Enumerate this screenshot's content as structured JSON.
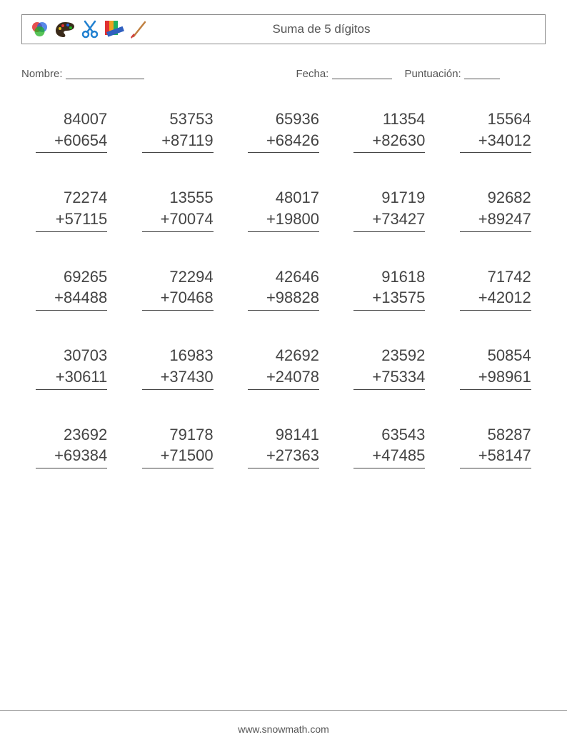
{
  "header": {
    "title": "Suma de 5 dígitos",
    "icons": [
      "venn-icon",
      "palette-icon",
      "scissors-icon",
      "swatch-ruler-icon",
      "brush-icon"
    ]
  },
  "labels": {
    "name": "Nombre:",
    "date": "Fecha:",
    "score": "Puntuación:"
  },
  "underline_widths": {
    "name": 110,
    "date": 84,
    "score": 50
  },
  "colors": {
    "text": "#444444",
    "border": "#888888",
    "background": "#ffffff"
  },
  "typography": {
    "title_fontsize": 17,
    "label_fontsize": 15,
    "problem_fontsize": 22,
    "footer_fontsize": 14
  },
  "grid": {
    "rows": 5,
    "cols": 5,
    "problems": [
      {
        "a": "84007",
        "b": "60654"
      },
      {
        "a": "53753",
        "b": "87119"
      },
      {
        "a": "65936",
        "b": "68426"
      },
      {
        "a": "11354",
        "b": "82630"
      },
      {
        "a": "15564",
        "b": "34012"
      },
      {
        "a": "72274",
        "b": "57115"
      },
      {
        "a": "13555",
        "b": "70074"
      },
      {
        "a": "48017",
        "b": "19800"
      },
      {
        "a": "91719",
        "b": "73427"
      },
      {
        "a": "92682",
        "b": "89247"
      },
      {
        "a": "69265",
        "b": "84488"
      },
      {
        "a": "72294",
        "b": "70468"
      },
      {
        "a": "42646",
        "b": "98828"
      },
      {
        "a": "91618",
        "b": "13575"
      },
      {
        "a": "71742",
        "b": "42012"
      },
      {
        "a": "30703",
        "b": "30611"
      },
      {
        "a": "16983",
        "b": "37430"
      },
      {
        "a": "42692",
        "b": "24078"
      },
      {
        "a": "23592",
        "b": "75334"
      },
      {
        "a": "50854",
        "b": "98961"
      },
      {
        "a": "23692",
        "b": "69384"
      },
      {
        "a": "79178",
        "b": "71500"
      },
      {
        "a": "98141",
        "b": "27363"
      },
      {
        "a": "63543",
        "b": "47485"
      },
      {
        "a": "58287",
        "b": "58147"
      }
    ]
  },
  "footer": {
    "text": "www.snowmath.com"
  }
}
